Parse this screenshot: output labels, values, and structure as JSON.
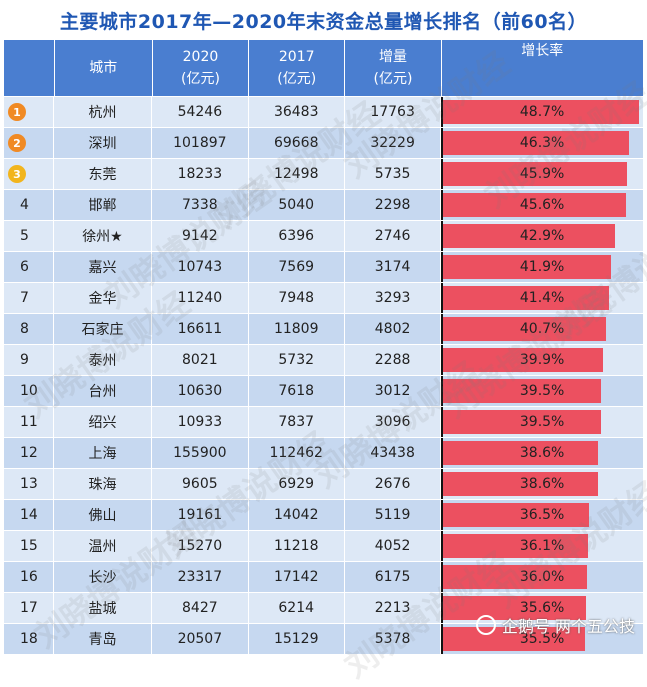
{
  "title": "主要城市2017年—2020年末资金总量增长排名（前60名）",
  "headers": {
    "city": "城市",
    "y2020": "2020",
    "y2020_unit": "(亿元)",
    "y2017": "2017",
    "y2017_unit": "(亿元)",
    "increase": "增量",
    "increase_unit": "(亿元)",
    "growth": "增长率"
  },
  "watermark": "刘晓博说财经",
  "credit": "企鹅号 两个五公技",
  "medal_colors": [
    "#f08a24",
    "#f08a24",
    "#f2b51d"
  ],
  "bar_color": "#ec5060",
  "chart_data": {
    "type": "table",
    "columns": [
      "rank",
      "city",
      "2020",
      "2017",
      "increase",
      "growth"
    ],
    "rows": [
      {
        "rank": "1",
        "city": "杭州",
        "v2020": "54246",
        "v2017": "36483",
        "inc": "17763",
        "rate": "48.7%",
        "pct": 48.7
      },
      {
        "rank": "2",
        "city": "深圳",
        "v2020": "101897",
        "v2017": "69668",
        "inc": "32229",
        "rate": "46.3%",
        "pct": 46.3
      },
      {
        "rank": "3",
        "city": "东莞",
        "v2020": "18233",
        "v2017": "12498",
        "inc": "5735",
        "rate": "45.9%",
        "pct": 45.9
      },
      {
        "rank": "4",
        "city": "邯郸",
        "v2020": "7338",
        "v2017": "5040",
        "inc": "2298",
        "rate": "45.6%",
        "pct": 45.6
      },
      {
        "rank": "5",
        "city": "徐州★",
        "v2020": "9142",
        "v2017": "6396",
        "inc": "2746",
        "rate": "42.9%",
        "pct": 42.9
      },
      {
        "rank": "6",
        "city": "嘉兴",
        "v2020": "10743",
        "v2017": "7569",
        "inc": "3174",
        "rate": "41.9%",
        "pct": 41.9
      },
      {
        "rank": "7",
        "city": "金华",
        "v2020": "11240",
        "v2017": "7948",
        "inc": "3293",
        "rate": "41.4%",
        "pct": 41.4
      },
      {
        "rank": "8",
        "city": "石家庄",
        "v2020": "16611",
        "v2017": "11809",
        "inc": "4802",
        "rate": "40.7%",
        "pct": 40.7
      },
      {
        "rank": "9",
        "city": "泰州",
        "v2020": "8021",
        "v2017": "5732",
        "inc": "2288",
        "rate": "39.9%",
        "pct": 39.9
      },
      {
        "rank": "10",
        "city": "台州",
        "v2020": "10630",
        "v2017": "7618",
        "inc": "3012",
        "rate": "39.5%",
        "pct": 39.5
      },
      {
        "rank": "11",
        "city": "绍兴",
        "v2020": "10933",
        "v2017": "7837",
        "inc": "3096",
        "rate": "39.5%",
        "pct": 39.5
      },
      {
        "rank": "12",
        "city": "上海",
        "v2020": "155900",
        "v2017": "112462",
        "inc": "43438",
        "rate": "38.6%",
        "pct": 38.6
      },
      {
        "rank": "13",
        "city": "珠海",
        "v2020": "9605",
        "v2017": "6929",
        "inc": "2676",
        "rate": "38.6%",
        "pct": 38.6
      },
      {
        "rank": "14",
        "city": "佛山",
        "v2020": "19161",
        "v2017": "14042",
        "inc": "5119",
        "rate": "36.5%",
        "pct": 36.5
      },
      {
        "rank": "15",
        "city": "温州",
        "v2020": "15270",
        "v2017": "11218",
        "inc": "4052",
        "rate": "36.1%",
        "pct": 36.1
      },
      {
        "rank": "16",
        "city": "长沙",
        "v2020": "23317",
        "v2017": "17142",
        "inc": "6175",
        "rate": "36.0%",
        "pct": 36.0
      },
      {
        "rank": "17",
        "city": "盐城",
        "v2020": "8427",
        "v2017": "6214",
        "inc": "2213",
        "rate": "35.6%",
        "pct": 35.6
      },
      {
        "rank": "18",
        "city": "青岛",
        "v2020": "20507",
        "v2017": "15129",
        "inc": "5378",
        "rate": "35.5%",
        "pct": 35.5
      }
    ]
  }
}
